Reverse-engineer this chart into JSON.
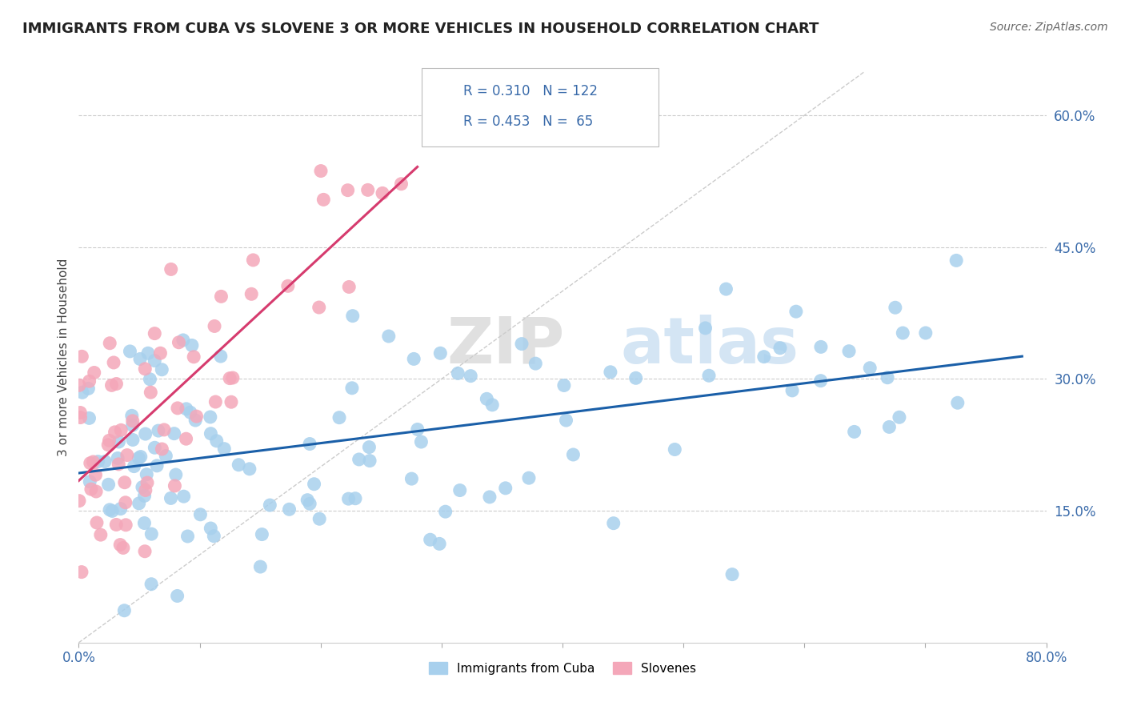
{
  "title": "IMMIGRANTS FROM CUBA VS SLOVENE 3 OR MORE VEHICLES IN HOUSEHOLD CORRELATION CHART",
  "source": "Source: ZipAtlas.com",
  "ylabel": "3 or more Vehicles in Household",
  "legend_labels": [
    "Immigrants from Cuba",
    "Slovenes"
  ],
  "r_blue": 0.31,
  "n_blue": 122,
  "r_pink": 0.453,
  "n_pink": 65,
  "color_blue": "#a8d0ed",
  "color_pink": "#f4a7b9",
  "line_blue": "#1a5fa8",
  "line_pink": "#d63b6e",
  "xlim": [
    0.0,
    0.8
  ],
  "ylim": [
    0.0,
    0.65
  ],
  "yticks_right": [
    0.15,
    0.3,
    0.45,
    0.6
  ],
  "background": "#ffffff",
  "seed_blue": 7,
  "seed_pink": 13
}
